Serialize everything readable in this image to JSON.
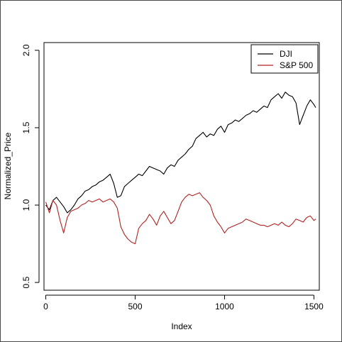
{
  "chart_data": {
    "type": "line",
    "title": "",
    "xlabel": "Index",
    "ylabel": "Normalized_Price",
    "xlim": [
      -10,
      1530
    ],
    "ylim": [
      0.45,
      2.05
    ],
    "x_ticks": [
      0,
      500,
      1000,
      1500
    ],
    "x_tick_labels": [
      "0",
      "500",
      "1000",
      "1500"
    ],
    "y_ticks": [
      0.5,
      1.0,
      1.5,
      2.0
    ],
    "y_tick_labels": [
      "0.5",
      "1.0",
      "1.5",
      "2.0"
    ],
    "grid": false,
    "legend_position": "top-right",
    "series": [
      {
        "name": "DJI",
        "color": "#000000",
        "x": [
          0,
          20,
          40,
          60,
          80,
          100,
          120,
          140,
          160,
          180,
          200,
          220,
          240,
          260,
          280,
          300,
          320,
          340,
          360,
          380,
          400,
          420,
          440,
          460,
          480,
          500,
          520,
          540,
          560,
          580,
          600,
          620,
          640,
          660,
          680,
          700,
          720,
          740,
          760,
          780,
          800,
          820,
          840,
          860,
          880,
          900,
          920,
          940,
          960,
          980,
          1000,
          1020,
          1040,
          1060,
          1080,
          1100,
          1120,
          1140,
          1160,
          1180,
          1200,
          1220,
          1240,
          1260,
          1280,
          1300,
          1320,
          1340,
          1360,
          1380,
          1400,
          1420,
          1440,
          1460,
          1480,
          1500,
          1510
        ],
        "values": [
          1.0,
          0.97,
          1.03,
          1.05,
          1.02,
          0.99,
          0.95,
          0.97,
          1.0,
          1.04,
          1.06,
          1.09,
          1.1,
          1.12,
          1.13,
          1.15,
          1.16,
          1.18,
          1.2,
          1.14,
          1.05,
          1.06,
          1.12,
          1.14,
          1.16,
          1.18,
          1.2,
          1.19,
          1.22,
          1.25,
          1.24,
          1.23,
          1.22,
          1.2,
          1.24,
          1.26,
          1.25,
          1.29,
          1.31,
          1.33,
          1.36,
          1.38,
          1.43,
          1.45,
          1.47,
          1.44,
          1.46,
          1.45,
          1.49,
          1.51,
          1.47,
          1.52,
          1.53,
          1.55,
          1.54,
          1.56,
          1.58,
          1.59,
          1.61,
          1.6,
          1.62,
          1.64,
          1.63,
          1.68,
          1.7,
          1.72,
          1.69,
          1.73,
          1.71,
          1.7,
          1.66,
          1.52,
          1.58,
          1.64,
          1.68,
          1.65,
          1.63
        ]
      },
      {
        "name": "S&P 500",
        "color": "#b22222",
        "x": [
          0,
          20,
          40,
          60,
          80,
          100,
          120,
          140,
          160,
          180,
          200,
          220,
          240,
          260,
          280,
          300,
          320,
          340,
          360,
          380,
          400,
          420,
          440,
          460,
          480,
          500,
          520,
          540,
          560,
          580,
          600,
          620,
          640,
          660,
          680,
          700,
          720,
          740,
          760,
          780,
          800,
          820,
          840,
          860,
          880,
          900,
          920,
          940,
          960,
          980,
          1000,
          1020,
          1040,
          1060,
          1080,
          1100,
          1120,
          1140,
          1160,
          1180,
          1200,
          1220,
          1240,
          1260,
          1280,
          1300,
          1320,
          1340,
          1360,
          1380,
          1400,
          1420,
          1440,
          1460,
          1480,
          1500,
          1510
        ],
        "values": [
          1.02,
          0.95,
          1.03,
          1.0,
          0.9,
          0.82,
          0.92,
          0.96,
          0.97,
          0.98,
          1.0,
          1.01,
          1.03,
          1.02,
          1.03,
          1.04,
          1.02,
          1.03,
          1.04,
          1.02,
          0.98,
          0.86,
          0.81,
          0.78,
          0.76,
          0.75,
          0.85,
          0.88,
          0.9,
          0.94,
          0.91,
          0.87,
          0.93,
          0.96,
          0.92,
          0.88,
          0.9,
          0.96,
          1.02,
          1.05,
          1.07,
          1.06,
          1.07,
          1.08,
          1.05,
          1.03,
          1.0,
          0.93,
          0.89,
          0.86,
          0.82,
          0.85,
          0.86,
          0.87,
          0.88,
          0.89,
          0.91,
          0.9,
          0.89,
          0.88,
          0.87,
          0.87,
          0.86,
          0.87,
          0.88,
          0.87,
          0.89,
          0.87,
          0.86,
          0.88,
          0.91,
          0.9,
          0.89,
          0.92,
          0.93,
          0.9,
          0.91
        ]
      }
    ]
  }
}
